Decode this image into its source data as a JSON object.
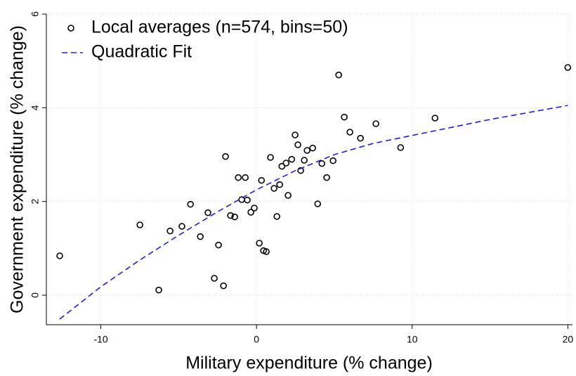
{
  "chart_data": {
    "type": "scatter",
    "xlabel": "Military expenditure (% change)",
    "ylabel": "Government expenditure (% change)",
    "xlim": [
      -13.5,
      20.3
    ],
    "ylim": [
      -0.63,
      6
    ],
    "xticks": [
      -10,
      0,
      10,
      20
    ],
    "yticks": [
      0,
      2,
      4,
      6
    ],
    "grid": true,
    "legend": "upper left",
    "series": [
      {
        "name": "Local averages (n=574, bins=50)",
        "type": "scatter",
        "color": "#000000",
        "x": [
          -12.64,
          -7.49,
          -6.28,
          -5.55,
          -4.79,
          -4.24,
          -3.61,
          -3.12,
          -2.71,
          -2.44,
          -2.12,
          -1.99,
          -1.67,
          -1.4,
          -1.17,
          -0.95,
          -0.72,
          -0.59,
          -0.36,
          -0.14,
          0.18,
          0.32,
          0.45,
          0.63,
          0.9,
          1.13,
          1.31,
          1.49,
          1.63,
          1.9,
          2.03,
          2.26,
          2.48,
          2.66,
          2.84,
          3.07,
          3.25,
          3.61,
          3.93,
          4.2,
          4.51,
          4.92,
          5.28,
          5.64,
          6.0,
          6.68,
          7.67,
          9.26,
          11.47,
          20.0
        ],
        "values": [
          0.84,
          1.5,
          0.11,
          1.37,
          1.47,
          1.94,
          1.25,
          1.76,
          0.36,
          1.07,
          0.2,
          2.96,
          1.7,
          1.67,
          2.51,
          2.04,
          2.51,
          2.03,
          1.77,
          1.86,
          1.11,
          2.45,
          0.95,
          0.93,
          2.94,
          2.28,
          1.68,
          2.36,
          2.75,
          2.82,
          2.13,
          2.9,
          3.42,
          3.21,
          2.66,
          2.88,
          3.09,
          3.14,
          1.95,
          2.81,
          2.51,
          2.87,
          4.7,
          3.8,
          3.48,
          3.35,
          3.66,
          3.15,
          3.78,
          4.86
        ]
      },
      {
        "name": "Quadratic Fit",
        "type": "line",
        "color": "#1f1fd6",
        "dashed": true,
        "x": [
          -12.64,
          -10,
          -7.5,
          -5,
          -2.5,
          0,
          2.5,
          5,
          7.5,
          10,
          15,
          20
        ],
        "values": [
          -0.51,
          0.18,
          0.75,
          1.28,
          1.78,
          2.25,
          2.66,
          3.0,
          3.24,
          3.41,
          3.75,
          4.05
        ]
      }
    ]
  }
}
